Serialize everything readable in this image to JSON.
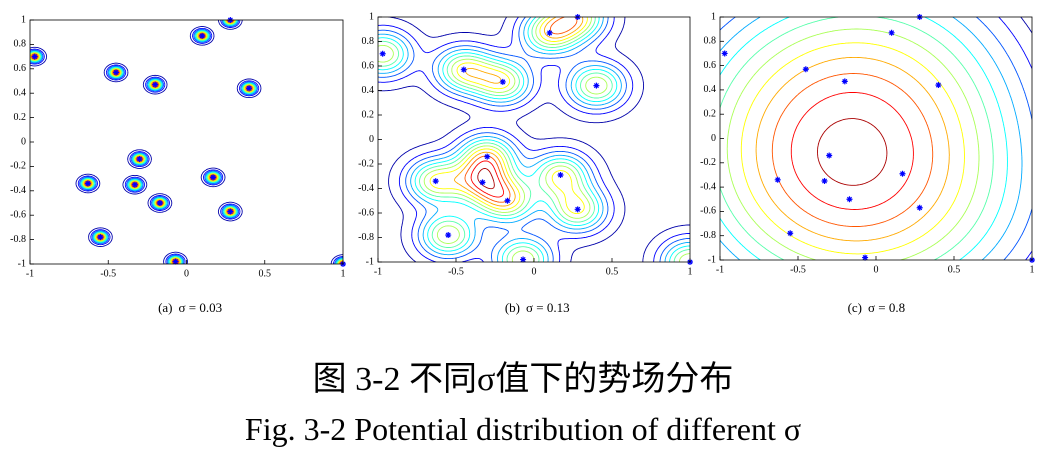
{
  "chart_data": [
    {
      "type": "contour",
      "caption": "(a)",
      "sigma": {
        "value": 0.03,
        "label": "σ = 0.03"
      },
      "x": [
        -0.97,
        -0.45,
        -0.2,
        0.1,
        0.28,
        0.4,
        -0.3,
        -0.63,
        -0.33,
        0.17,
        -0.17,
        0.28,
        -0.55,
        -0.07,
        1.0
      ],
      "y": [
        0.7,
        0.57,
        0.47,
        0.87,
        1.0,
        0.44,
        -0.14,
        -0.34,
        -0.35,
        -0.29,
        -0.5,
        -0.57,
        -0.78,
        -0.98,
        -1.0
      ],
      "xlim": [
        -1,
        1
      ],
      "ylim": [
        -1,
        1
      ],
      "xticks": [
        -1,
        -0.5,
        0,
        0.5,
        1
      ],
      "yticks": [
        -1,
        -0.8,
        -0.6,
        -0.4,
        -0.2,
        0,
        0.2,
        0.4,
        0.6,
        0.8,
        1
      ],
      "color": "#0000ff"
    },
    {
      "type": "contour",
      "caption": "(b)",
      "sigma": {
        "value": 0.13,
        "label": "σ = 0.13"
      },
      "x": [
        -0.97,
        -0.45,
        -0.2,
        0.1,
        0.28,
        0.4,
        -0.3,
        -0.63,
        -0.33,
        0.17,
        -0.17,
        0.28,
        -0.55,
        -0.07,
        1.0
      ],
      "y": [
        0.7,
        0.57,
        0.47,
        0.87,
        1.0,
        0.44,
        -0.14,
        -0.34,
        -0.35,
        -0.29,
        -0.5,
        -0.57,
        -0.78,
        -0.98,
        -1.0
      ],
      "xlim": [
        -1,
        1
      ],
      "ylim": [
        -1,
        1
      ],
      "xticks": [
        -1,
        -0.5,
        0,
        0.5,
        1
      ],
      "yticks": [
        -1,
        -0.8,
        -0.6,
        -0.4,
        -0.2,
        0,
        0.2,
        0.4,
        0.6,
        0.8,
        1
      ],
      "color": "#0000ff"
    },
    {
      "type": "contour",
      "caption": "(c)",
      "sigma": {
        "value": 0.8,
        "label": "σ = 0.8"
      },
      "x": [
        -0.97,
        -0.45,
        -0.2,
        0.1,
        0.28,
        0.4,
        -0.3,
        -0.63,
        -0.33,
        0.17,
        -0.17,
        0.28,
        -0.55,
        -0.07,
        1.0
      ],
      "y": [
        0.7,
        0.57,
        0.47,
        0.87,
        1.0,
        0.44,
        -0.14,
        -0.34,
        -0.35,
        -0.29,
        -0.5,
        -0.57,
        -0.78,
        -0.98,
        -1.0
      ],
      "xlim": [
        -1,
        1
      ],
      "ylim": [
        -1,
        1
      ],
      "xticks": [
        -1,
        -0.5,
        0,
        0.5,
        1
      ],
      "yticks": [
        -1,
        -0.8,
        -0.6,
        -0.4,
        -0.2,
        0,
        0.2,
        0.4,
        0.6,
        0.8,
        1
      ],
      "color": "#0000ff"
    }
  ],
  "figure": {
    "caption_cn": "图 3-2 不同σ值下的势场分布",
    "caption_en": "Fig. 3-2 Potential distribution of different σ"
  }
}
